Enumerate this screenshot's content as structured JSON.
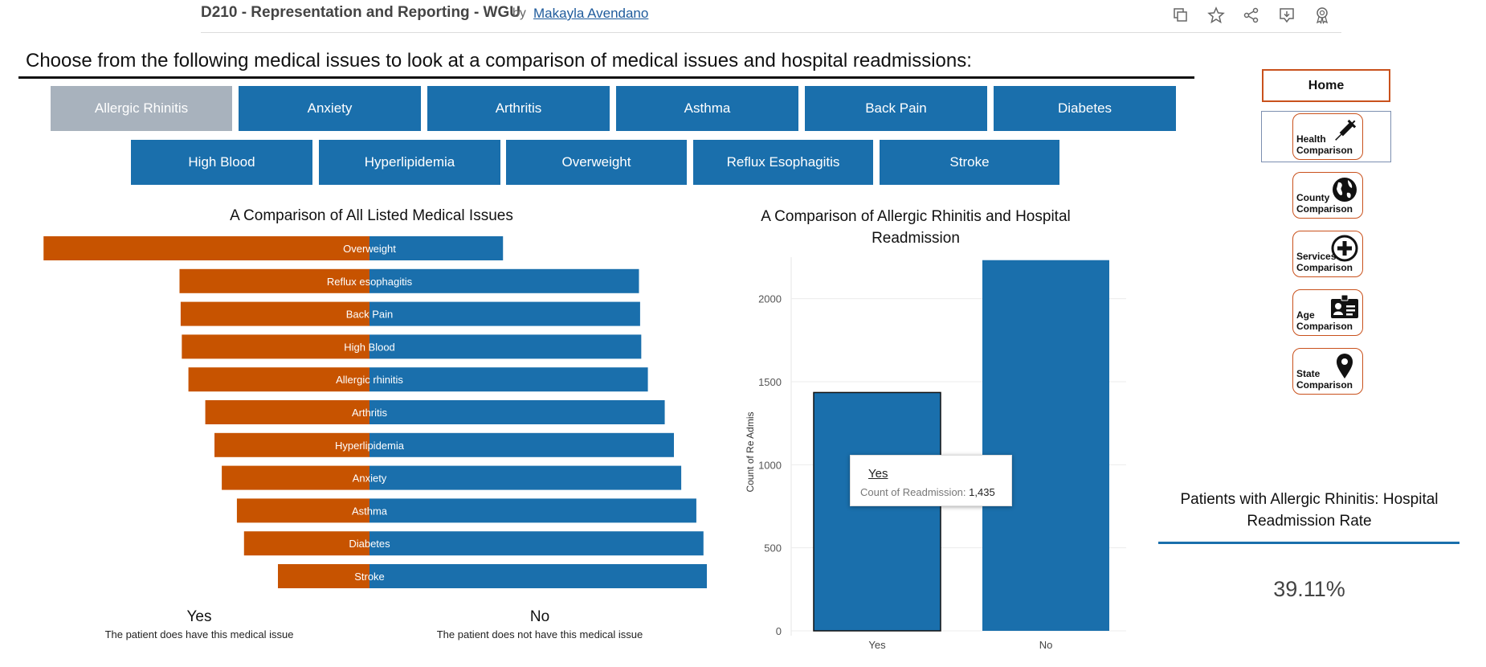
{
  "header": {
    "title": "D210 - Representation and Reporting - WGU",
    "by": "by",
    "author": "Makayla Avendano",
    "toolbar_icons": [
      "copy-icon",
      "star-icon",
      "share-icon",
      "download-icon",
      "badge-icon"
    ]
  },
  "headline": "Choose from the following medical issues to look at a comparison of medical issues and hospital readmissions:",
  "filters": {
    "row1": [
      "Allergic Rhinitis",
      "Anxiety",
      "Arthritis",
      "Asthma",
      "Back Pain",
      "Diabetes"
    ],
    "row2": [
      "High Blood",
      "Hyperlipidemia",
      "Overweight",
      "Reflux Esophagitis",
      "Stroke"
    ],
    "selected": "Allergic Rhinitis"
  },
  "left_chart": {
    "title": "A Comparison of All Listed Medical Issues",
    "yes_label": "Yes",
    "yes_sub": "The patient does have this medical issue",
    "no_label": "No",
    "no_sub": "The patient does not have this medical issue"
  },
  "right_chart": {
    "title": "A Comparison of Allergic Rhinitis and Hospital Readmission",
    "ylabel": "Count of Re Admis",
    "tooltip": {
      "category": "Yes",
      "measure_label": "Count of Readmission:",
      "measure_value": "1,435"
    }
  },
  "nav": {
    "home": "Home",
    "buttons": [
      {
        "line1": "Health",
        "line2": "Comparison",
        "icon": "syringe-icon"
      },
      {
        "line1": "County",
        "line2": "Comparison",
        "icon": "globe-icon"
      },
      {
        "line1": "Services",
        "line2": "Comparison",
        "icon": "plus-circle-icon"
      },
      {
        "line1": "Age",
        "line2": "Comparison",
        "icon": "id-card-icon"
      },
      {
        "line1": "State",
        "line2": "Comparison",
        "icon": "map-pin-icon"
      }
    ]
  },
  "rate_panel": {
    "title": "Patients with Allergic Rhinitis: Hospital Readmission Rate",
    "value": "39.11%"
  },
  "colors": {
    "yes": "#c75300",
    "no": "#1a6fac",
    "selected_filter": "#a8b2bd",
    "nav_border": "#c9511c"
  },
  "chart_data": [
    {
      "type": "bar",
      "orientation": "horizontal diverging",
      "categories": [
        "Overweight",
        "Reflux esophagitis",
        "Back Pain",
        "High Blood",
        "Allergic rhinitis",
        "Arthritis",
        "Hyperlipidemia",
        "Anxiety",
        "Asthma",
        "Diabetes",
        "Stroke"
      ],
      "series": [
        {
          "name": "Yes",
          "values": [
            7094,
            4135,
            4110,
            4085,
            3941,
            3574,
            3374,
            3215,
            2886,
            2731,
            1993
          ]
        },
        {
          "name": "No",
          "values": [
            2906,
            5865,
            5890,
            5915,
            6059,
            6426,
            6626,
            6785,
            7114,
            7269,
            8007
          ]
        }
      ],
      "title": "A Comparison of All Listed Medical Issues",
      "xlabel": "",
      "ylabel": ""
    },
    {
      "type": "bar",
      "categories": [
        "Yes",
        "No"
      ],
      "values": [
        1435,
        2232
      ],
      "title": "A Comparison of Allergic Rhinitis and Hospital Readmission",
      "xlabel": "",
      "ylabel": "Count of Re Admis",
      "ylim": [
        0,
        2250
      ],
      "yticks": [
        0,
        500,
        1000,
        1500,
        2000
      ],
      "grid": true
    }
  ]
}
